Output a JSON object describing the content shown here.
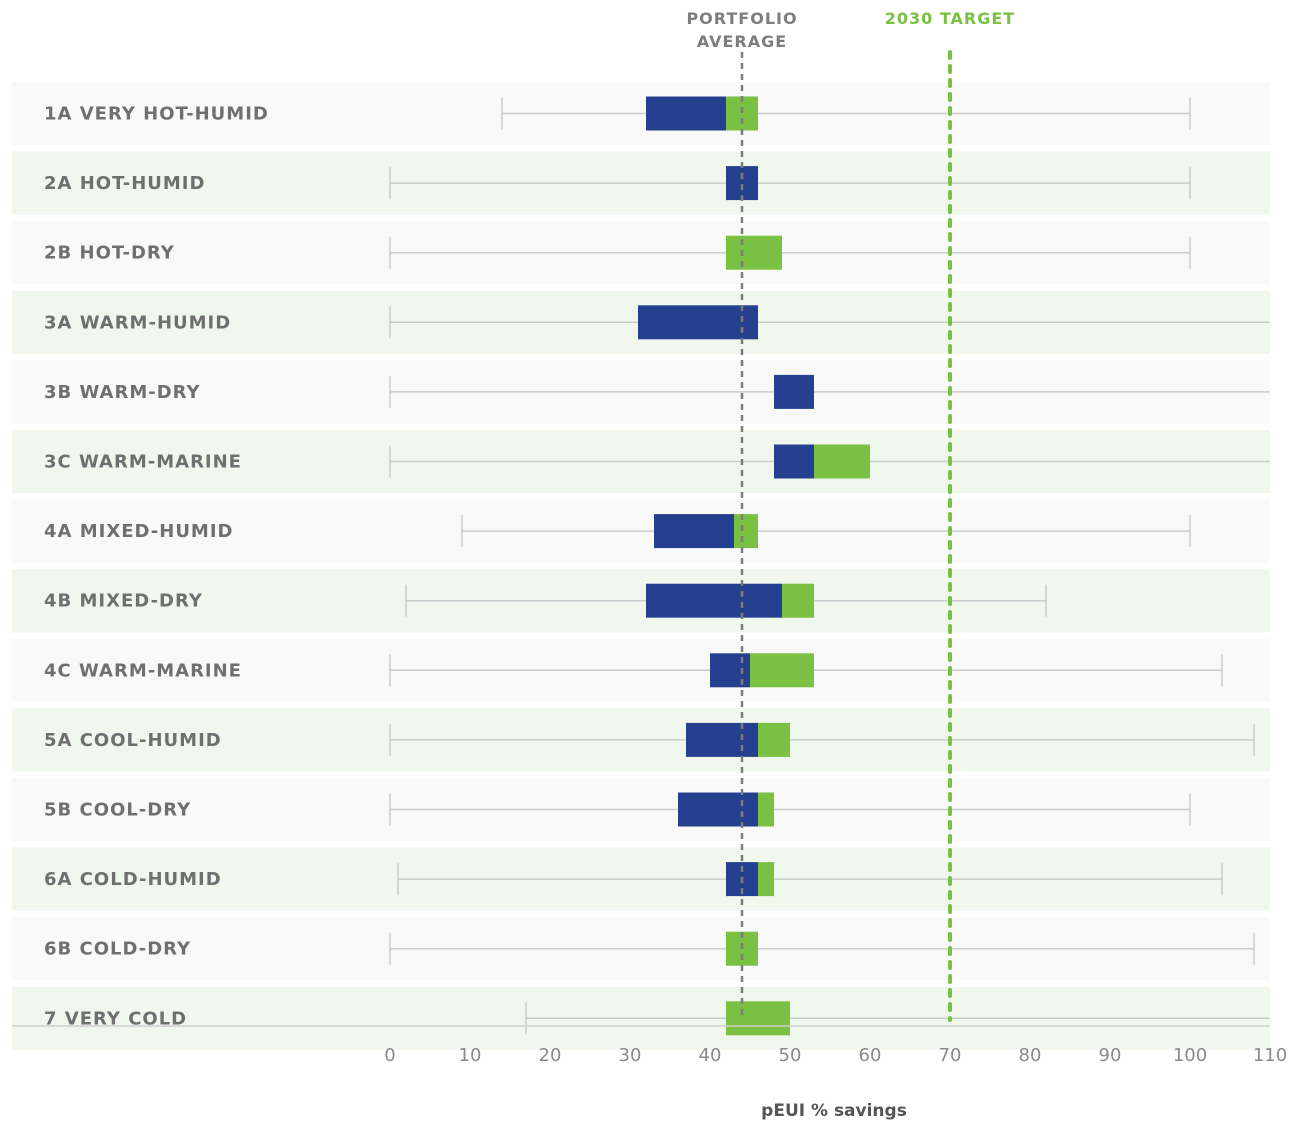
{
  "chart_data": {
    "type": "bar",
    "orientation": "horizontal",
    "subtype": "floating-range-with-whiskers",
    "xlabel": "pEUI % savings",
    "xlim": [
      0,
      110
    ],
    "xticks": [
      "0",
      "10",
      "20",
      "30",
      "40",
      "50",
      "60",
      "70",
      "80",
      "90",
      "100",
      "110"
    ],
    "grid": false,
    "annotations": {
      "portfolio_average": {
        "label_line1": "PORTFOLIO",
        "label_line2": "AVERAGE",
        "value": 44
      },
      "target_2030": {
        "label": "2030 TARGET",
        "value": 70
      }
    },
    "colors": {
      "blue_segment": "#25408f",
      "green_segment": "#7ac143",
      "whisker": "#cccccc",
      "row_even": "#f9f9f9",
      "row_odd": "#f0f7ec",
      "avg_line": "#7d7d7d",
      "target_line": "#7ac143"
    },
    "categories": [
      "1A VERY HOT-HUMID",
      "2A HOT-HUMID",
      "2B HOT-DRY",
      "3A WARM-HUMID",
      "3B WARM-DRY",
      "3C WARM-MARINE",
      "4A MIXED-HUMID",
      "4B MIXED-DRY",
      "4C WARM-MARINE",
      "5A COOL-HUMID",
      "5B COOL-DRY",
      "6A COLD-HUMID",
      "6B COLD-DRY",
      "7 VERY COLD"
    ],
    "series": [
      {
        "name": "blue segment",
        "ranges": [
          [
            32,
            42
          ],
          [
            42,
            46
          ],
          null,
          [
            31,
            46
          ],
          [
            48,
            53
          ],
          [
            48,
            53
          ],
          [
            33,
            43
          ],
          [
            32,
            49
          ],
          [
            40,
            45
          ],
          [
            37,
            46
          ],
          [
            36,
            46
          ],
          [
            42,
            46
          ],
          null,
          null
        ]
      },
      {
        "name": "green segment",
        "ranges": [
          [
            42,
            46
          ],
          null,
          [
            42,
            49
          ],
          null,
          null,
          [
            53,
            60
          ],
          [
            43,
            46
          ],
          [
            49,
            53
          ],
          [
            45,
            53
          ],
          [
            46,
            50
          ],
          [
            46,
            48
          ],
          [
            46,
            48
          ],
          [
            42,
            46
          ],
          [
            42,
            50
          ]
        ]
      },
      {
        "name": "whisker range",
        "ranges": [
          [
            14,
            100
          ],
          [
            0,
            100
          ],
          [
            0,
            100
          ],
          [
            0,
            110
          ],
          [
            0,
            110
          ],
          [
            0,
            110
          ],
          [
            9,
            100
          ],
          [
            2,
            82
          ],
          [
            0,
            104
          ],
          [
            0,
            108
          ],
          [
            0,
            100
          ],
          [
            1,
            104
          ],
          [
            0,
            108
          ],
          [
            17,
            110
          ]
        ]
      }
    ]
  }
}
